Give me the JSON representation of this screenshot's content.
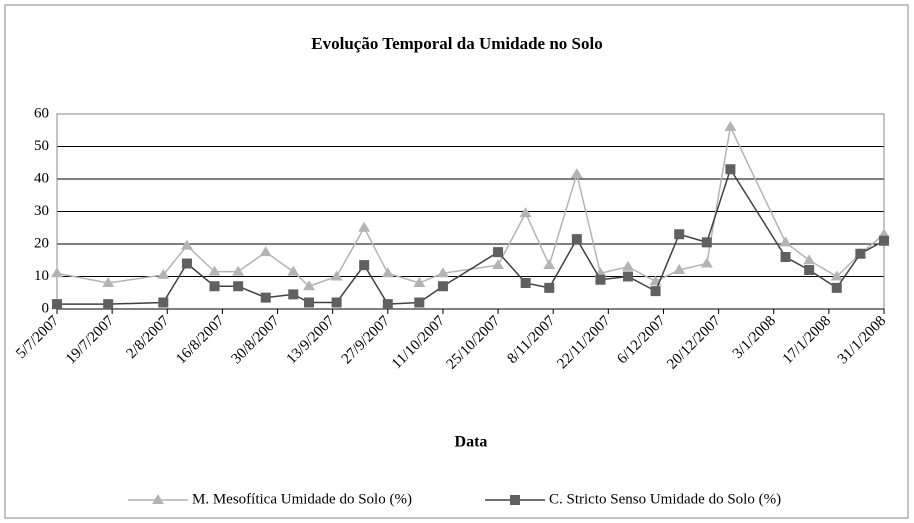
{
  "chart_data": {
    "type": "line",
    "title": "Evolução Temporal da Umidade no Solo",
    "x_label": "Data",
    "x": [
      "5/7/2007",
      "18/7/2007",
      "1/8/2007",
      "7/8/2007",
      "14/8/2007",
      "20/8/2007",
      "27/8/2007",
      "3/9/2007",
      "7/9/2007",
      "14/9/2007",
      "21/9/2007",
      "27/9/2007",
      "5/10/2007",
      "11/10/2007",
      "25/10/2007",
      "1/11/2007",
      "7/11/2007",
      "14/11/2007",
      "20/11/2007",
      "27/11/2007",
      "4/12/2007",
      "10/12/2007",
      "17/12/2007",
      "23/12/2007",
      "6/1/2008",
      "12/1/2008",
      "19/1/2008",
      "25/1/2008",
      "31/1/2008"
    ],
    "series": [
      {
        "name": "M. Mesofítica Umidade do Solo (%)",
        "color": "#b4b4b4",
        "marker": "triangle",
        "values": [
          11,
          8,
          10.5,
          19.5,
          11.5,
          11.5,
          17.5,
          11.5,
          7,
          10,
          25,
          11,
          8,
          11,
          13.5,
          29.5,
          13.5,
          41.5,
          11,
          13,
          8.5,
          12,
          14,
          56,
          20.5,
          15,
          10,
          17,
          23
        ]
      },
      {
        "name": "C. Stricto Senso Umidade do Solo (%)",
        "color": "#606060",
        "marker": "square",
        "values": [
          1.5,
          1.5,
          2,
          14,
          7,
          7,
          3.5,
          4.5,
          2,
          2,
          13.5,
          1.5,
          2,
          7,
          17.5,
          8,
          6.5,
          21.5,
          9,
          10,
          5.5,
          23,
          20.5,
          43,
          16,
          12,
          6.5,
          17,
          21
        ]
      }
    ],
    "xlim": [
      "5/7/2007",
      "31/1/2008"
    ],
    "xticks": [
      "5/7/2007",
      "19/7/2007",
      "2/8/2007",
      "16/8/2007",
      "30/8/2007",
      "13/9/2007",
      "27/9/2007",
      "11/10/2007",
      "25/10/2007",
      "8/11/2007",
      "22/11/2007",
      "6/12/2007",
      "20/12/2007",
      "3/1/2008",
      "17/1/2008",
      "31/1/2008"
    ],
    "ylim": [
      0,
      60
    ],
    "yticks": [
      0,
      10,
      20,
      30,
      40,
      50,
      60
    ],
    "grid": true,
    "legend": "bottom"
  }
}
